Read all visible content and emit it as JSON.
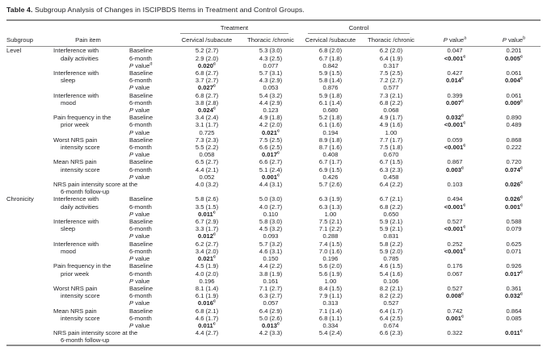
{
  "title": {
    "bold": "Table 4.",
    "text": "Subgroup Analysis of Changes in ISCIPBDS Items in Treatment and Control Groups."
  },
  "header": {
    "subgroup": "Subgroup",
    "pain_item": "Pain item",
    "treatment": "Treatment",
    "control": "Control",
    "cervical": "Cervical /subacute",
    "thoracic": "Thoracic /chronic",
    "pa": {
      "i": "P",
      "t": " value",
      "s": "a"
    },
    "pb": {
      "i": "P",
      "t": " value",
      "s": "b"
    }
  },
  "labels": {
    "baseline": "Baseline",
    "six_month": "6-month",
    "p_value": "P value"
  },
  "sections": [
    {
      "subgroup": "Level",
      "items": [
        {
          "lines": [
            "Interference with",
            "daily activities"
          ],
          "rows": [
            {
              "l": {
                "t": "Baseline"
              },
              "c": [
                "5.2 (2.7)",
                "5.3 (3.0)",
                "6.8 (2.0)",
                "6.2 (2.0)",
                "0.047",
                "0.201"
              ]
            },
            {
              "l": {
                "t": "6-month"
              },
              "c": [
                "2.9 (2.0)",
                "4.3 (2.5)",
                "6.7 (1.8)",
                "6.4 (1.9)",
                {
                  "t": "<0.001",
                  "s": "c",
                  "b": true
                },
                {
                  "t": "0.005",
                  "s": "c",
                  "b": true
                }
              ]
            },
            {
              "l": {
                "i": "P",
                "t": " value",
                "s": "d"
              },
              "c": [
                {
                  "t": "0.020",
                  "s": "c",
                  "b": true
                },
                "0.077",
                "0.842",
                "0.317",
                null,
                null
              ]
            }
          ]
        },
        {
          "lines": [
            "Interference with",
            "sleep"
          ],
          "rows": [
            {
              "l": {
                "t": "Baseline"
              },
              "c": [
                "6.8 (2.7)",
                "5.7 (3.1)",
                "5.9 (1.5)",
                "7.5 (2.5)",
                "0.427",
                "0.061"
              ]
            },
            {
              "l": {
                "t": "6-month"
              },
              "c": [
                "3.7 (2.7)",
                "4.3 (2.9)",
                "5.8 (1.4)",
                "7.2 (2.7)",
                {
                  "t": "0.014",
                  "s": "c",
                  "b": true
                },
                {
                  "t": "0.004",
                  "s": "c",
                  "b": true
                }
              ]
            },
            {
              "l": {
                "i": "P",
                "t": " value"
              },
              "c": [
                {
                  "t": "0.027",
                  "s": "c",
                  "b": true
                },
                "0.053",
                "0.876",
                "0.577",
                null,
                null
              ]
            }
          ]
        },
        {
          "lines": [
            "Interference with",
            "mood"
          ],
          "rows": [
            {
              "l": {
                "t": "Baseline"
              },
              "c": [
                "6.8 (2.7)",
                "5.4 (3.2)",
                "5.9 (1.8)",
                "7.3 (2.1)",
                "0.399",
                "0.061"
              ]
            },
            {
              "l": {
                "t": "6-month"
              },
              "c": [
                "3.8 (2.8)",
                "4.4 (2.9)",
                "6.1 (1.4)",
                "6.8 (2.2)",
                {
                  "t": "0.007",
                  "s": "c",
                  "b": true
                },
                {
                  "t": "0.009",
                  "s": "c",
                  "b": true
                }
              ]
            },
            {
              "l": {
                "i": "P",
                "t": " value"
              },
              "c": [
                {
                  "t": "0.024",
                  "s": "c",
                  "b": true
                },
                "0.123",
                "0.680",
                "0.068",
                null,
                null
              ]
            }
          ]
        },
        {
          "lines": [
            "Pain frequency in the",
            "prior week"
          ],
          "rows": [
            {
              "l": {
                "t": "Baseline"
              },
              "c": [
                "3.4 (2.4)",
                "4.9 (1.8)",
                "5.2 (1.8)",
                "4.9 (1.7)",
                {
                  "t": "0.032",
                  "s": "c",
                  "b": true
                },
                "0.890"
              ]
            },
            {
              "l": {
                "t": "6-month"
              },
              "c": [
                "3.1 (1.7)",
                "4.2 (2.0)",
                "6.1 (1.6)",
                "4.9 (1.6)",
                {
                  "t": "<0.001",
                  "s": "c",
                  "b": true
                },
                "0.489"
              ]
            },
            {
              "l": {
                "i": "P",
                "t": " value"
              },
              "c": [
                "0.725",
                {
                  "t": "0.021",
                  "s": "c",
                  "b": true
                },
                "0.194",
                "1.00",
                null,
                null
              ]
            }
          ]
        },
        {
          "lines": [
            "Worst NRS pain",
            "intensity score"
          ],
          "rows": [
            {
              "l": {
                "t": "Baseline"
              },
              "c": [
                "7.3 (2.3)",
                "7.5 (2.5)",
                "8.9 (1.8)",
                "7.7 (1.7)",
                "0.059",
                "0.868"
              ]
            },
            {
              "l": {
                "t": "6-month"
              },
              "c": [
                "5.5 (2.2)",
                "6.6 (2.5)",
                "8.7 (1.6)",
                "7.5 (1.8)",
                {
                  "t": "<0.001",
                  "s": "c",
                  "b": true
                },
                "0.222"
              ]
            },
            {
              "l": {
                "i": "P",
                "t": " value"
              },
              "c": [
                "0.058",
                {
                  "t": "0.017",
                  "s": "c",
                  "b": true
                },
                "0.408",
                "0.670",
                null,
                null
              ]
            }
          ]
        },
        {
          "lines": [
            "Mean NRS pain",
            "intensity score"
          ],
          "rows": [
            {
              "l": {
                "t": "Baseline"
              },
              "c": [
                "6.5 (2.7)",
                "6.6 (2.7)",
                "6.7 (1.7)",
                "6.7 (1.5)",
                "0.867",
                "0.720"
              ]
            },
            {
              "l": {
                "t": "6-month"
              },
              "c": [
                "4.4 (2.1)",
                "5.1 (2.4)",
                "6.9 (1.5)",
                "6.3 (2.3)",
                {
                  "t": "0.003",
                  "s": "c",
                  "b": true
                },
                {
                  "t": "0.074",
                  "s": "c",
                  "b": true
                }
              ]
            },
            {
              "l": {
                "i": "P",
                "t": " value"
              },
              "c": [
                "0.052",
                {
                  "t": "0.001",
                  "s": "c",
                  "b": true
                },
                "0.426",
                "0.458",
                null,
                null
              ]
            }
          ]
        },
        {
          "wide": true,
          "lines": [
            "NRS pain intensity score at the",
            "6-month follow-up"
          ],
          "rows": [
            {
              "l": null,
              "c": [
                "4.0 (3.2)",
                "4.4 (3.1)",
                "5.7 (2.6)",
                "6.4 (2.2)",
                "0.103",
                {
                  "t": "0.026",
                  "s": "c",
                  "b": true
                }
              ]
            }
          ]
        }
      ]
    },
    {
      "subgroup": "Chronicity",
      "items": [
        {
          "lines": [
            "Interference with",
            "daily activities"
          ],
          "rows": [
            {
              "l": {
                "t": "Baseline"
              },
              "c": [
                "5.8 (2.6)",
                "5.0 (3.0)",
                "6.3 (1.9)",
                "6.7 (2.1)",
                "0.494",
                {
                  "t": "0.026",
                  "s": "c",
                  "b": true
                }
              ]
            },
            {
              "l": {
                "t": "6-month"
              },
              "c": [
                "3.5 (1.5)",
                "4.0 (2.7)",
                "6.3 (1.3)",
                "6.8 (2.2)",
                {
                  "t": "<0.001",
                  "s": "c",
                  "b": true
                },
                {
                  "t": "0.001",
                  "s": "c",
                  "b": true
                }
              ]
            },
            {
              "l": {
                "i": "P",
                "t": " value"
              },
              "c": [
                {
                  "t": "0.011",
                  "s": "c",
                  "b": true
                },
                "0.110",
                "1.00",
                "0.650",
                null,
                null
              ]
            }
          ]
        },
        {
          "lines": [
            "Interference with",
            "sleep"
          ],
          "rows": [
            {
              "l": {
                "t": "Baseline"
              },
              "c": [
                "6.7 (2.9)",
                "5.8 (3.0)",
                "7.5 (2.1)",
                "5.9 (2.1)",
                "0.527",
                "0.588"
              ]
            },
            {
              "l": {
                "t": "6-month"
              },
              "c": [
                "3.3 (1.7)",
                "4.5 (3.2)",
                "7.1 (2.2)",
                "5.9 (2.1)",
                {
                  "t": "<0.001",
                  "s": "c",
                  "b": true
                },
                "0.079"
              ]
            },
            {
              "l": {
                "i": "P",
                "t": " value"
              },
              "c": [
                {
                  "t": "0.012",
                  "s": "c",
                  "b": true
                },
                "0.093",
                "0.288",
                "0.831",
                null,
                null
              ]
            }
          ]
        },
        {
          "lines": [
            "Interference with",
            "mood"
          ],
          "rows": [
            {
              "l": {
                "t": "Baseline"
              },
              "c": [
                "6.2 (2.7)",
                "5.7 (3.2)",
                "7.4 (1.5)",
                "5.8 (2.2)",
                "0.252",
                "0.625"
              ]
            },
            {
              "l": {
                "t": "6-month"
              },
              "c": [
                "3.4 (2.0)",
                "4.6 (3.1)",
                "7.0 (1.6)",
                "5.9 (2.0)",
                {
                  "t": "<0.001",
                  "s": "c",
                  "b": true
                },
                "0.071"
              ]
            },
            {
              "l": {
                "i": "P",
                "t": " value"
              },
              "c": [
                {
                  "t": "0.021",
                  "s": "c",
                  "b": true
                },
                "0.150",
                "0.196",
                "0.785",
                null,
                null
              ]
            }
          ]
        },
        {
          "lines": [
            "Pain frequency in the",
            "prior week"
          ],
          "rows": [
            {
              "l": {
                "t": "Baseline"
              },
              "c": [
                "4.5 (1.9)",
                "4.4 (2.2)",
                "5.6 (2.0)",
                "4.6 (1.5)",
                "0.176",
                "0.926"
              ]
            },
            {
              "l": {
                "t": "6-month"
              },
              "c": [
                "4.0 (2.0)",
                "3.8 (1.9)",
                "5.6 (1.9)",
                "5.4 (1.6)",
                "0.067",
                {
                  "t": "0.017",
                  "s": "c",
                  "b": true
                }
              ]
            },
            {
              "l": {
                "i": "P",
                "t": " value"
              },
              "c": [
                "0.196",
                "0.161",
                "1.00",
                "0.106",
                null,
                null
              ]
            }
          ]
        },
        {
          "lines": [
            "Worst NRS pain",
            "intensity score"
          ],
          "rows": [
            {
              "l": {
                "t": "Baseline"
              },
              "c": [
                "8.1 (1.4)",
                "7.1 (2.7)",
                "8.4 (1.5)",
                "8.2 (2.1)",
                "0.527",
                "0.361"
              ]
            },
            {
              "l": {
                "t": "6-month"
              },
              "c": [
                "6.1 (1.9)",
                "6.3 (2.7)",
                "7.9 (1.1)",
                "8.2 (2.2)",
                {
                  "t": "0.008",
                  "s": "c",
                  "b": true
                },
                {
                  "t": "0.032",
                  "s": "c",
                  "b": true
                }
              ]
            },
            {
              "l": {
                "i": "P",
                "t": " value"
              },
              "c": [
                {
                  "t": "0.016",
                  "s": "c",
                  "b": true
                },
                "0.057",
                "0.313",
                "0.527",
                null,
                null
              ]
            }
          ]
        },
        {
          "lines": [
            "Mean NRS pain",
            "intensity score"
          ],
          "rows": [
            {
              "l": {
                "t": "Baseline"
              },
              "c": [
                "6.8 (2.1)",
                "6.4 (2.9)",
                "7.1 (1.4)",
                "6.4 (1.7)",
                "0.742",
                "0.864"
              ]
            },
            {
              "l": {
                "t": "6-month"
              },
              "c": [
                "4.6 (1.7)",
                "5.0 (2.6)",
                "6.8 (1.1)",
                "6.4 (2.5)",
                {
                  "t": "0.001",
                  "s": "c",
                  "b": true
                },
                "0.085"
              ]
            },
            {
              "l": {
                "i": "P",
                "t": " value"
              },
              "c": [
                {
                  "t": "0.011",
                  "s": "c",
                  "b": true
                },
                {
                  "t": "0.013",
                  "s": "c",
                  "b": true
                },
                "0.334",
                "0.674",
                null,
                null
              ]
            }
          ]
        },
        {
          "wide": true,
          "lines": [
            "NRS pain intensity score at the",
            "6-month follow-up"
          ],
          "rows": [
            {
              "l": null,
              "c": [
                "4.4 (2.7)",
                "4.2 (3.3)",
                "5.4 (2.4)",
                "6.6 (2.3)",
                "0.322",
                {
                  "t": "0.011",
                  "s": "c",
                  "b": true
                }
              ]
            }
          ]
        }
      ]
    }
  ]
}
